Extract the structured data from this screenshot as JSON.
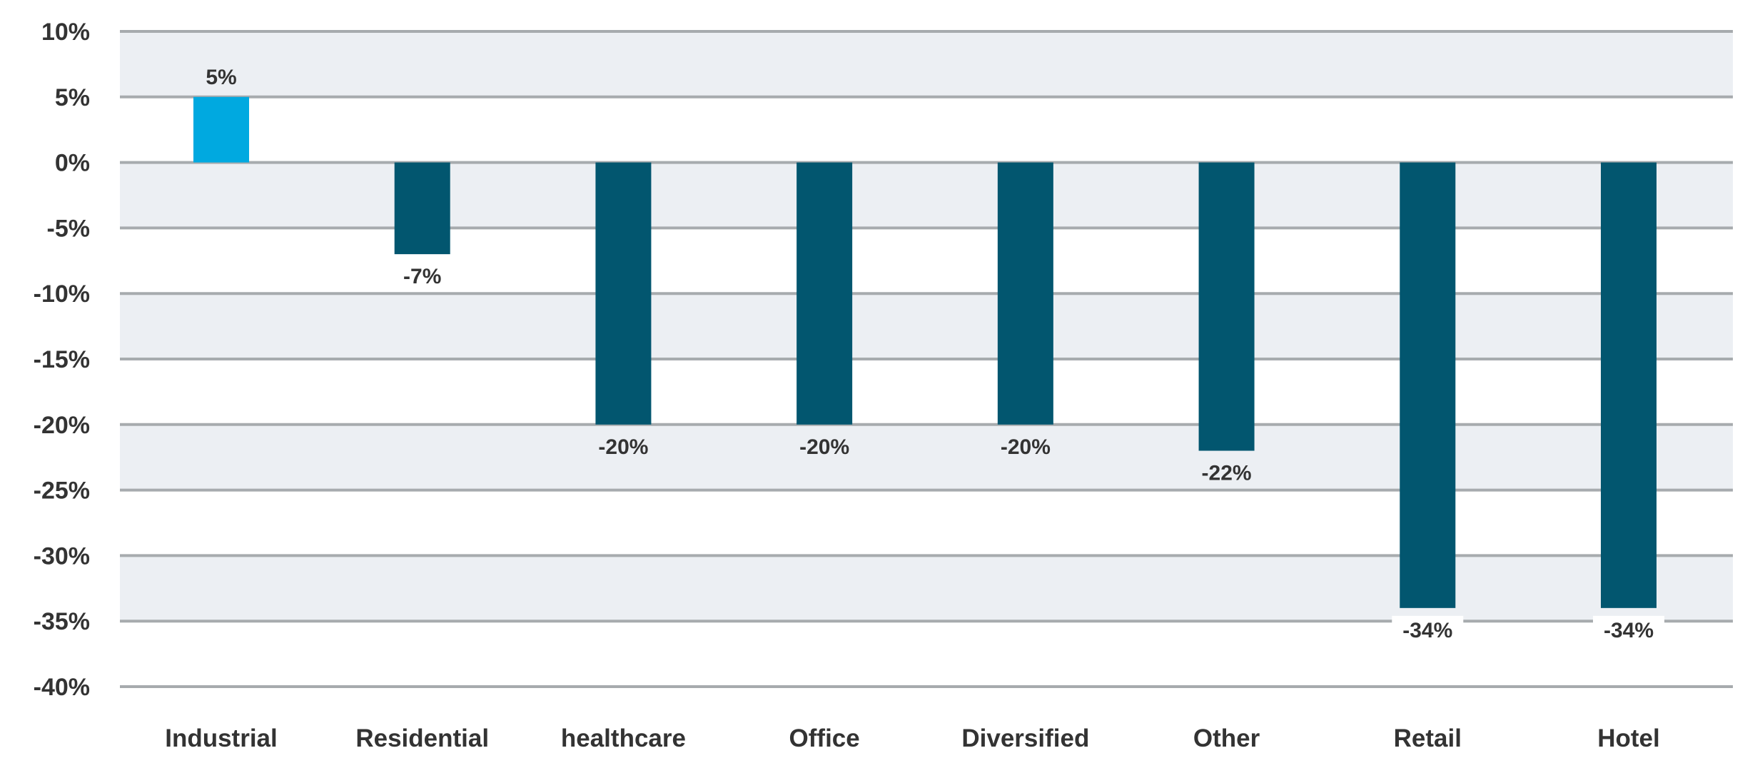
{
  "chart_data": {
    "type": "bar",
    "title": "",
    "xlabel": "",
    "ylabel": "",
    "categories": [
      "Industrial",
      "Residential",
      "healthcare",
      "Office",
      "Diversified",
      "Other",
      "Retail",
      "Hotel"
    ],
    "values": [
      5,
      -7,
      -20,
      -20,
      -20,
      -22,
      -34,
      -34
    ],
    "data_labels": [
      "5%",
      "-7%",
      "-20%",
      "-20%",
      "-20%",
      "-22%",
      "-34%",
      "-34%"
    ],
    "ylim": [
      -40,
      10
    ],
    "yticks": [
      10,
      5,
      0,
      -5,
      -10,
      -15,
      -20,
      -25,
      -30,
      -35,
      -40
    ],
    "ytick_labels": [
      "10%",
      "5%",
      "0%",
      "-5%",
      "-10%",
      "-15%",
      "-20%",
      "-25%",
      "-30%",
      "-35%",
      "-40%"
    ],
    "grid": true,
    "legend": "none",
    "colors": {
      "positive_bar": "#00A9E0",
      "negative_bar": "#02566F",
      "band_fill": "#ECEFF3",
      "gridline": "#A7ABAE",
      "text": "#333333"
    }
  }
}
